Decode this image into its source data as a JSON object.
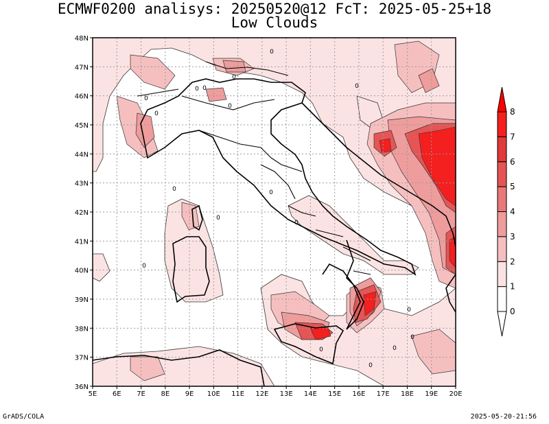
{
  "title_line1": "ECMWF0200 analisys: 20250520@12 FcT: 2025-05-25+18",
  "title_line2": "Low Clouds",
  "footer_left": "GrADS/COLA",
  "footer_right": "2025-05-20-21:56",
  "colors": {
    "level_1": "#fce3e3",
    "level_2": "#f6bfbf",
    "level_3": "#ef9c9c",
    "level_4": "#ea7878",
    "level_5": "#e55555",
    "level_6": "#e03a3a",
    "level_7": "#f41f1f",
    "level_8": "#ff0000",
    "coastline": "#000000",
    "grid": "#999999"
  },
  "map": {
    "lon_range": [
      5,
      20
    ],
    "lat_range": [
      36,
      48
    ],
    "lon_ticks": [
      "5E",
      "6E",
      "7E",
      "8E",
      "9E",
      "10E",
      "11E",
      "12E",
      "13E",
      "14E",
      "15E",
      "16E",
      "17E",
      "18E",
      "19E",
      "20E"
    ],
    "lat_ticks": [
      "36N",
      "37N",
      "38N",
      "39N",
      "40N",
      "41N",
      "42N",
      "43N",
      "44N",
      "45N",
      "46N",
      "47N",
      "48N"
    ]
  },
  "colorbar": {
    "labels": [
      "0",
      "1",
      "2",
      "3",
      "4",
      "5",
      "6",
      "7",
      "8"
    ],
    "fills": [
      "#ffffff",
      "#fce3e3",
      "#f6bfbf",
      "#ef9c9c",
      "#ea7878",
      "#e55555",
      "#e03a3a",
      "#f41f1f"
    ]
  },
  "contour_labels": [
    "0",
    "0",
    "0",
    "0",
    "0",
    "0",
    "0",
    "0",
    "0",
    "0",
    "0",
    "0",
    "0",
    "0",
    "0",
    "0",
    "0",
    "0"
  ]
}
